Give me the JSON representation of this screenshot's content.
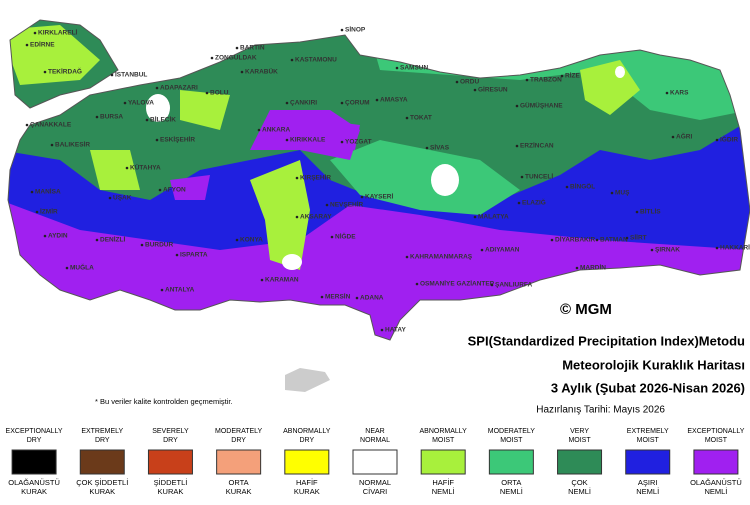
{
  "map": {
    "title": "SPI(Standardized Precipitation Index)Metodu",
    "subtitle": "Meteorolojik Kuraklık Haritası",
    "period": "3 Aylık (Şubat 2026-Nisan 2026)",
    "date": "Hazırlanış Tarihi: Mayıs 2026",
    "note": "* Bu veriler kalite kontrolden geçmemiştir.",
    "credit": "© MGM",
    "cities": [
      "KIRKLARELİ",
      "EDİRNE",
      "TEKİRDAĞ",
      "İSTANBUL",
      "BARTIN",
      "ZONGULDAK",
      "KASTAMONU",
      "KARABÜK",
      "SİNOP",
      "SAMSUN",
      "ORDU",
      "GİRESUN",
      "TRABZON",
      "RİZE",
      "ADAPAZARI",
      "BOLU",
      "YALOVA",
      "BURSA",
      "BİLECİK",
      "ÇANAKKALE",
      "BALIKESİR",
      "ESKİŞEHİR",
      "ÇANKIRI",
      "ÇORUM",
      "AMASYA",
      "TOKAT",
      "GÜMÜŞHANE",
      "KARS",
      "AĞRI",
      "IĞDIR",
      "ANKARA",
      "KIRIKKALE",
      "YOZGAT",
      "SİVAS",
      "ERZİNCAN",
      "TUNCELİ",
      "BİNGÖL",
      "MUŞ",
      "BİTLİS",
      "KÜTAHYA",
      "AFYON",
      "UŞAK",
      "MANİSA",
      "İZMİR",
      "AYDIN",
      "DENİZLİ",
      "KIRŞEHİR",
      "NEVŞEHİR",
      "KAYSERİ",
      "MALATYA",
      "ELAZIĞ",
      "AKSARAY",
      "NİĞDE",
      "KONYA",
      "BURDUR",
      "ISPARTA",
      "MUĞLA",
      "ADIYAMAN",
      "DİYARBAKIR",
      "BATMAN",
      "SİİRT",
      "ŞIRNAK",
      "HAKKARİ",
      "KAHRAMANMARAŞ",
      "OSMANİYE GAZİANTEP",
      "ŞANLIURFA",
      "MARDİN",
      "KARAMAN",
      "ANTALYA",
      "MERSİN",
      "ADANA",
      "HATAY"
    ],
    "legend": [
      {
        "label_en": [
          "EXCEPTIONALLY",
          "DRY"
        ],
        "label_tr": [
          "OLAĞANÜSTÜ",
          "KURAK"
        ],
        "color": "#000000"
      },
      {
        "label_en": [
          "EXTREMELY",
          "DRY"
        ],
        "label_tr": [
          "ÇOK ŞİDDETLİ",
          "KURAK"
        ],
        "color": "#6b3a1a"
      },
      {
        "label_en": [
          "SEVERELY",
          "DRY"
        ],
        "label_tr": [
          "ŞİDDETLİ",
          "KURAK"
        ],
        "color": "#c8401a"
      },
      {
        "label_en": [
          "MODERATELY",
          "DRY"
        ],
        "label_tr": [
          "ORTA",
          "KURAK"
        ],
        "color": "#f4a07a"
      },
      {
        "label_en": [
          "ABNORMALLY",
          "DRY"
        ],
        "label_tr": [
          "HAFİF",
          "KURAK"
        ],
        "color": "#ffff00"
      },
      {
        "label_en": [
          "NEAR",
          "NORMAL"
        ],
        "label_tr": [
          "NORMAL",
          "CİVARI"
        ],
        "color": "#ffffff"
      },
      {
        "label_en": [
          "ABNORMALLY",
          "MOIST"
        ],
        "label_tr": [
          "HAFİF",
          "NEMLİ"
        ],
        "color": "#a8f03c"
      },
      {
        "label_en": [
          "MODERATELY",
          "MOIST"
        ],
        "label_tr": [
          "ORTA",
          "NEMLİ"
        ],
        "color": "#3cc878"
      },
      {
        "label_en": [
          "VERY",
          "MOIST"
        ],
        "label_tr": [
          "ÇOK",
          "NEMLİ"
        ],
        "color": "#2e8b57"
      },
      {
        "label_en": [
          "EXTREMELY",
          "MOIST"
        ],
        "label_tr": [
          "AŞIRI",
          "NEMLİ"
        ],
        "color": "#2020e0"
      },
      {
        "label_en": [
          "EXCEPTIONALLY",
          "MOIST"
        ],
        "label_tr": [
          "OLAĞANÜSTÜ",
          "NEMLİ"
        ],
        "color": "#a020f0"
      }
    ]
  }
}
